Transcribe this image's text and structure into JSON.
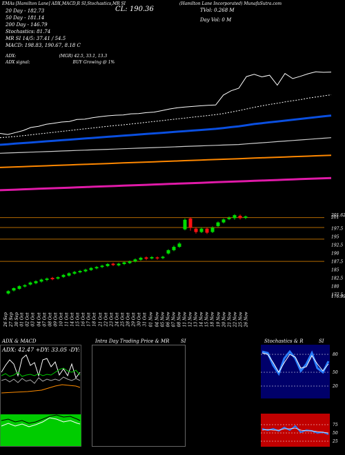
{
  "header": {
    "top_left": "[Hamilton Lane] Hamilton Lane Incorporated",
    "indicators": "EMAs [Hamilton Lane] ADX,MACD,R SI,Stochastics,MR SI",
    "source_right": "(Hamilton Lane Incorporated) MunafaSutra.com",
    "close": "CL: 190.36",
    "tvol": "TVol: 0.268",
    "tvol_unit": "M",
    "dayvol": "Day Vol: 0",
    "dayvol_unit": "M"
  },
  "ema_readout": [
    "20  Day - 182.73",
    "50  Day - 181.14",
    "200  Day - 146.79",
    "Stochastics: 81.74",
    "MR SI 14/5: 37.41 / 54.5",
    "MACD: 198.83, 190.67, 8.18 C"
  ],
  "adx_readout": {
    "label": "ADX:",
    "value": "(MGR) 42.5, 33.1, 13.3",
    "signal_label": "ADX signal:",
    "signal_value": "BUY Growing @ 1%"
  },
  "price_axis": [
    "201.62",
    "201",
    "197.5",
    "195",
    "192.5",
    "190",
    "187.5",
    "185",
    "182.5",
    "180",
    "177.5",
    "176.99"
  ],
  "date_labels": [
    "26 Sep",
    "27 Sep",
    "30 Sep",
    "01 Oct",
    "02 Oct",
    "03 Oct",
    "04 Oct",
    "07 Oct",
    "08 Oct",
    "09 Oct",
    "10 Oct",
    "11 Oct",
    "14 Oct",
    "15 Oct",
    "16 Oct",
    "17 Oct",
    "18 Oct",
    "21 Oct",
    "22 Oct",
    "23 Oct",
    "24 Oct",
    "25 Oct",
    "28 Oct",
    "29 Oct",
    "30 Oct",
    "31 Oct",
    "01 Nov",
    "04 Nov",
    "05 Nov",
    "06 Nov",
    "07 Nov",
    "08 Nov",
    "11 Nov",
    "12 Nov",
    "13 Nov",
    "14 Nov",
    "15 Nov",
    "18 Nov",
    "19 Nov",
    "20 Nov",
    "21 Nov",
    "22 Nov",
    "25 Nov",
    "26 Nov"
  ],
  "panels": {
    "adx_title": "ADX  & MACD",
    "adx_values": "ADX: 42.47 +DY: 33.05 -DY: 13.35",
    "intraday_title": "Intra Day Trading Price  & MR",
    "intraday_si": "SI",
    "stoch_title": "Stochastics & R",
    "stoch_si": "SI",
    "stoch_axis": [
      "80",
      "50",
      "20"
    ],
    "rsi_axis": [
      "75",
      "50",
      "25"
    ]
  },
  "colors": {
    "up": "#00dd00",
    "down": "#ff1111",
    "ema20": "#ffffff",
    "ema50": "#0a4fe0",
    "ema100": "#cccccc",
    "ema200": "#ff8800",
    "ema_long": "#e01aa8",
    "level_line": "#b56a00"
  },
  "chart_data": [
    {
      "type": "line",
      "title": "EMAs",
      "series": [
        {
          "name": "Price",
          "values": [
            180.0,
            179.6,
            180.3,
            181.0,
            182.1,
            182.5,
            183.2,
            183.6,
            184.0,
            184.2,
            184.9,
            185.0,
            185.5,
            185.9,
            186.2,
            186.4,
            186.5,
            186.9,
            187.0,
            187.3,
            187.5,
            188.0,
            188.6,
            189.0,
            189.3,
            189.5,
            189.7,
            189.9,
            190.0,
            193.5,
            195.0,
            195.9,
            200.0,
            200.8,
            199.9,
            200.5,
            197.0,
            201.1,
            199.3,
            200.1,
            201.0,
            201.7,
            201.5,
            201.6
          ]
        },
        {
          "name": "EMA 20",
          "values": [
            178.5,
            178.7,
            178.9,
            179.2,
            179.5,
            179.8,
            180.1,
            180.4,
            180.7,
            181.0,
            181.3,
            181.6,
            181.9,
            182.2,
            182.5,
            182.8,
            183.0,
            183.3,
            183.6,
            183.9,
            184.2,
            184.5,
            184.8,
            185.1,
            185.4,
            185.7,
            186.0,
            186.3,
            186.6,
            187.0,
            187.5,
            188.0,
            188.6,
            189.2,
            189.7,
            190.2,
            190.6,
            191.1,
            191.5,
            191.9,
            192.4,
            192.8,
            193.2,
            193.6
          ]
        },
        {
          "name": "EMA 50",
          "values": [
            176.0,
            176.2,
            176.4,
            176.6,
            176.8,
            177.0,
            177.2,
            177.4,
            177.6,
            177.8,
            178.0,
            178.2,
            178.4,
            178.6,
            178.8,
            179.0,
            179.2,
            179.4,
            179.6,
            179.8,
            180.0,
            180.2,
            180.4,
            180.6,
            180.8,
            181.0,
            181.2,
            181.4,
            181.6,
            181.9,
            182.2,
            182.5,
            182.9,
            183.3,
            183.6,
            183.9,
            184.2,
            184.5,
            184.8,
            185.1,
            185.4,
            185.7,
            186.0,
            186.3
          ]
        },
        {
          "name": "EMA 100",
          "values": [
            173.0,
            173.1,
            173.2,
            173.3,
            173.4,
            173.5,
            173.6,
            173.7,
            173.8,
            173.9,
            174.0,
            174.1,
            174.2,
            174.3,
            174.4,
            174.5,
            174.6,
            174.7,
            174.8,
            174.9,
            175.0,
            175.1,
            175.2,
            175.3,
            175.4,
            175.5,
            175.6,
            175.7,
            175.8,
            175.9,
            176.0,
            176.1,
            176.3,
            176.5,
            176.7,
            176.9,
            177.1,
            177.3,
            177.5,
            177.7,
            177.9,
            178.1,
            178.3,
            178.5
          ]
        },
        {
          "name": "EMA 200",
          "values": [
            168.0,
            168.1,
            168.2,
            168.3,
            168.4,
            168.5,
            168.6,
            168.7,
            168.8,
            168.9,
            169.0,
            169.1,
            169.2,
            169.3,
            169.4,
            169.5,
            169.6,
            169.7,
            169.8,
            169.9,
            170.0,
            170.1,
            170.2,
            170.3,
            170.4,
            170.5,
            170.6,
            170.7,
            170.8,
            170.9,
            171.0,
            171.1,
            171.2,
            171.3,
            171.4,
            171.5,
            171.6,
            171.7,
            171.8,
            171.9,
            172.0,
            172.1,
            172.2,
            172.3
          ]
        },
        {
          "name": "EMA Long",
          "values": [
            160.0,
            160.1,
            160.2,
            160.3,
            160.4,
            160.5,
            160.6,
            160.7,
            160.8,
            160.9,
            161.0,
            161.1,
            161.2,
            161.3,
            161.4,
            161.5,
            161.6,
            161.7,
            161.8,
            161.9,
            162.0,
            162.1,
            162.2,
            162.3,
            162.4,
            162.5,
            162.6,
            162.7,
            162.8,
            162.9,
            163.0,
            163.1,
            163.2,
            163.3,
            163.4,
            163.5,
            163.6,
            163.7,
            163.8,
            163.9,
            164.0,
            164.1,
            164.2,
            164.3
          ]
        }
      ]
    },
    {
      "type": "candlestick",
      "categories_ref": "date_labels",
      "ylim": [
        176.99,
        201.62
      ],
      "candles": [
        [
          177.9,
          178.6,
          177.6,
          178.9
        ],
        [
          178.8,
          179.5,
          178.5,
          179.7
        ],
        [
          179.3,
          180.1,
          179.0,
          180.4
        ],
        [
          180.0,
          180.4,
          179.7,
          180.7
        ],
        [
          180.6,
          181.2,
          180.3,
          181.5
        ],
        [
          181.0,
          181.6,
          180.7,
          181.9
        ],
        [
          181.5,
          182.1,
          181.2,
          182.4
        ],
        [
          182.0,
          182.4,
          181.6,
          182.7
        ],
        [
          182.6,
          182.2,
          181.9,
          182.9
        ],
        [
          182.4,
          182.8,
          182.1,
          183.1
        ],
        [
          182.9,
          183.5,
          182.6,
          183.8
        ],
        [
          183.3,
          184.0,
          183.0,
          184.3
        ],
        [
          183.9,
          184.4,
          183.6,
          184.7
        ],
        [
          184.3,
          184.7,
          184.0,
          185.0
        ],
        [
          184.6,
          185.1,
          184.3,
          185.4
        ],
        [
          185.0,
          185.6,
          184.7,
          185.9
        ],
        [
          185.5,
          185.9,
          185.2,
          186.2
        ],
        [
          185.9,
          186.3,
          185.6,
          186.6
        ],
        [
          186.2,
          186.8,
          185.9,
          187.1
        ],
        [
          186.9,
          186.5,
          186.2,
          187.2
        ],
        [
          186.4,
          186.9,
          186.1,
          187.2
        ],
        [
          186.8,
          187.3,
          186.5,
          187.6
        ],
        [
          187.1,
          187.6,
          186.8,
          187.9
        ],
        [
          187.6,
          188.2,
          187.3,
          188.5
        ],
        [
          188.1,
          188.7,
          187.8,
          189.0
        ],
        [
          188.8,
          188.4,
          188.0,
          189.1
        ],
        [
          188.5,
          188.9,
          188.2,
          189.2
        ],
        [
          188.8,
          188.5,
          188.1,
          189.1
        ],
        [
          188.6,
          189.0,
          188.3,
          189.3
        ],
        [
          190.0,
          191.0,
          189.7,
          191.3
        ],
        [
          191.0,
          192.0,
          190.7,
          192.4
        ],
        [
          192.0,
          193.0,
          191.7,
          193.4
        ],
        [
          197.3,
          200.2,
          197.0,
          200.6
        ],
        [
          200.6,
          197.8,
          196.9,
          201.0
        ],
        [
          197.5,
          196.5,
          196.0,
          198.0
        ],
        [
          196.5,
          197.5,
          196.2,
          197.9
        ],
        [
          197.5,
          196.3,
          195.9,
          197.8
        ],
        [
          196.5,
          197.8,
          196.2,
          198.2
        ],
        [
          198.3,
          199.4,
          198.0,
          199.7
        ],
        [
          199.4,
          200.3,
          199.1,
          200.6
        ],
        [
          200.4,
          200.8,
          200.1,
          201.2
        ],
        [
          200.7,
          201.6,
          200.2,
          201.9
        ],
        [
          201.4,
          200.7,
          200.3,
          201.8
        ],
        [
          200.8,
          201.2,
          200.4,
          201.5
        ]
      ],
      "level_lines": [
        200.86,
        197.85,
        194.35,
        187.6
      ]
    }
  ]
}
